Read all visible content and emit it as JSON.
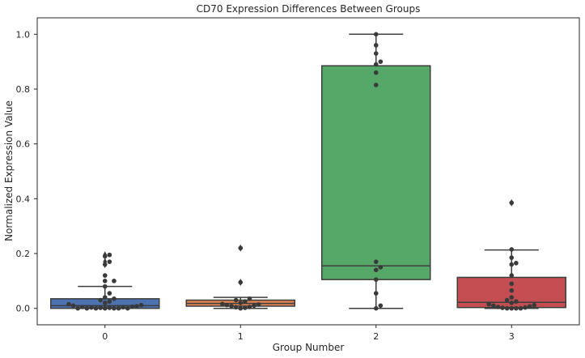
{
  "chart_data": {
    "type": "box",
    "title": "CD70 Expression Differences Between Groups",
    "xlabel": "Group Number",
    "ylabel": "Normalized Expression Value",
    "ylim": [
      -0.06,
      1.06
    ],
    "yticks": [
      0.0,
      0.2,
      0.4,
      0.6,
      0.8,
      1.0
    ],
    "ytick_labels": [
      "0.0",
      "0.2",
      "0.4",
      "0.6",
      "0.8",
      "1.0"
    ],
    "grid": false,
    "categories": [
      "0",
      "1",
      "2",
      "3"
    ],
    "colors": [
      "#4c72b0",
      "#dd8452",
      "#55a868",
      "#c44e52"
    ],
    "point_color": "#3a3a3a",
    "boxes": [
      {
        "category": "0",
        "whisker_low": 0.0,
        "q1": 0.0,
        "median": 0.01,
        "q3": 0.035,
        "whisker_high": 0.08,
        "outliers": [
          0.16,
          0.17,
          0.19,
          0.195
        ]
      },
      {
        "category": "1",
        "whisker_low": 0.0,
        "q1": 0.008,
        "median": 0.018,
        "q3": 0.03,
        "whisker_high": 0.04,
        "outliers": [
          0.095,
          0.22
        ]
      },
      {
        "category": "2",
        "whisker_low": 0.0,
        "q1": 0.105,
        "median": 0.155,
        "q3": 0.885,
        "whisker_high": 1.0,
        "outliers": []
      },
      {
        "category": "3",
        "whisker_low": 0.0,
        "q1": 0.003,
        "median": 0.022,
        "q3": 0.113,
        "whisker_high": 0.213,
        "outliers": [
          0.385
        ]
      }
    ],
    "points": [
      {
        "category": "0",
        "values": [
          0.0,
          0.0,
          0.0,
          0.0,
          0.0,
          0.0,
          0.0,
          0.002,
          0.002,
          0.003,
          0.004,
          0.005,
          0.006,
          0.008,
          0.01,
          0.012,
          0.015,
          0.02,
          0.025,
          0.03,
          0.035,
          0.04,
          0.055,
          0.08,
          0.1,
          0.1,
          0.12,
          0.16,
          0.17,
          0.19,
          0.195
        ]
      },
      {
        "category": "1",
        "values": [
          0.0,
          0.002,
          0.004,
          0.005,
          0.008,
          0.01,
          0.012,
          0.014,
          0.016,
          0.02,
          0.025,
          0.03,
          0.035,
          0.095,
          0.22
        ]
      },
      {
        "category": "2",
        "values": [
          0.0,
          0.01,
          0.055,
          0.105,
          0.14,
          0.15,
          0.17,
          0.815,
          0.86,
          0.89,
          0.9,
          0.93,
          0.96,
          1.0
        ]
      },
      {
        "category": "3",
        "values": [
          0.0,
          0.0,
          0.0,
          0.0,
          0.002,
          0.003,
          0.005,
          0.007,
          0.01,
          0.012,
          0.015,
          0.02,
          0.025,
          0.03,
          0.04,
          0.065,
          0.09,
          0.12,
          0.16,
          0.165,
          0.185,
          0.215,
          0.385
        ]
      }
    ]
  }
}
